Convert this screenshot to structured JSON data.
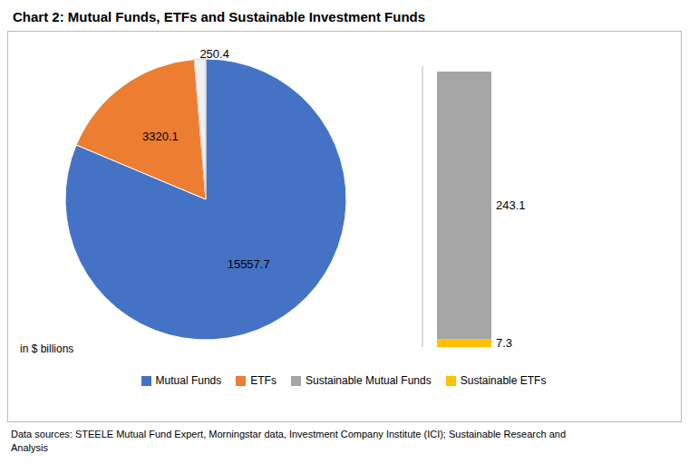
{
  "chart_data": [
    {
      "type": "pie",
      "title": "Chart 2:  Mutual Funds, ETFs and Sustainable Investment Funds",
      "categories": [
        "Mutual Funds",
        "ETFs",
        null
      ],
      "values": [
        15557.7,
        3320.1,
        250.4
      ],
      "colors": [
        "#4472C4",
        "#ED7D31",
        "#F0F0F0"
      ],
      "data_labels": true,
      "legend": "bottom",
      "annotations": [
        "in $ billions",
        "Data sources:  STEELE Mutual Fund Expert, Morningstar data, Investment Company Institute (ICI); Sustainable Research and\nAnalysis"
      ]
    },
    {
      "type": "bar",
      "stacked": true,
      "categories": [
        null
      ],
      "series": [
        {
          "name": "Sustainable Mutual Funds",
          "color": "#A5A5A5",
          "values": [
            243.1
          ]
        },
        {
          "name": "Sustainable ETFs",
          "color": "#FFC000",
          "values": [
            7.3
          ]
        }
      ],
      "ylim": [
        0,
        255.408
      ],
      "data_labels": true,
      "tick_labels": false
    }
  ]
}
